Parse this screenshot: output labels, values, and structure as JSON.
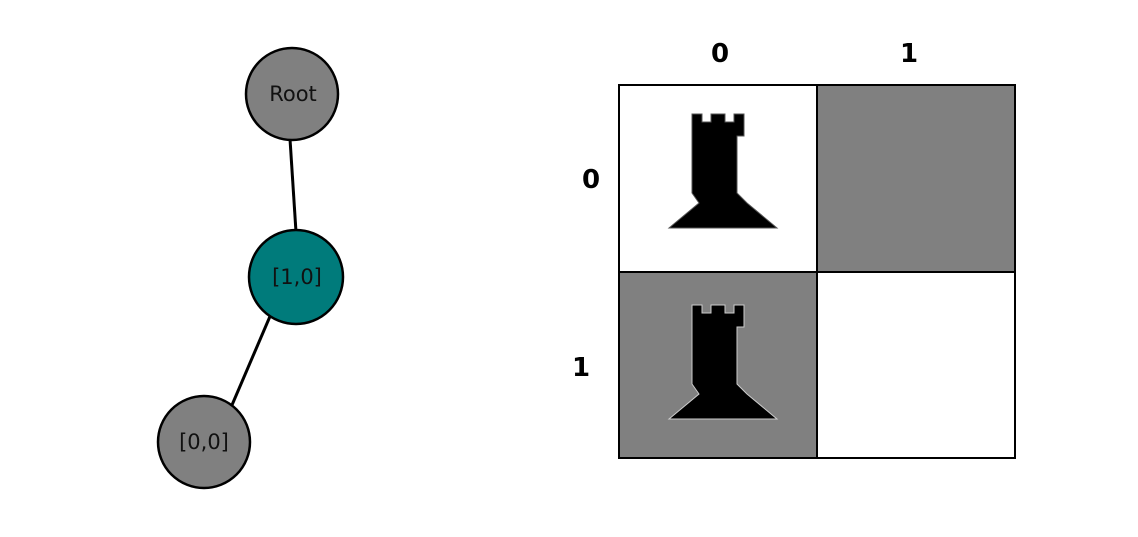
{
  "tree": {
    "nodes": [
      {
        "id": "root",
        "label": "Root",
        "color": "#808080"
      },
      {
        "id": "n10",
        "label": "[1,0]",
        "color": "#007b7b"
      },
      {
        "id": "n00",
        "label": "[0,0]",
        "color": "#808080"
      }
    ],
    "edges": [
      {
        "from": "root",
        "to": "n10"
      },
      {
        "from": "n10",
        "to": "n00"
      }
    ]
  },
  "board": {
    "col_labels": [
      "0",
      "1"
    ],
    "row_labels": [
      "0",
      "1"
    ],
    "cells": [
      {
        "row": 0,
        "col": 0,
        "color": "#ffffff",
        "piece": "rook-icon"
      },
      {
        "row": 0,
        "col": 1,
        "color": "#808080",
        "piece": ""
      },
      {
        "row": 1,
        "col": 0,
        "color": "#808080",
        "piece": "rook-icon"
      },
      {
        "row": 1,
        "col": 1,
        "color": "#ffffff",
        "piece": ""
      }
    ]
  }
}
